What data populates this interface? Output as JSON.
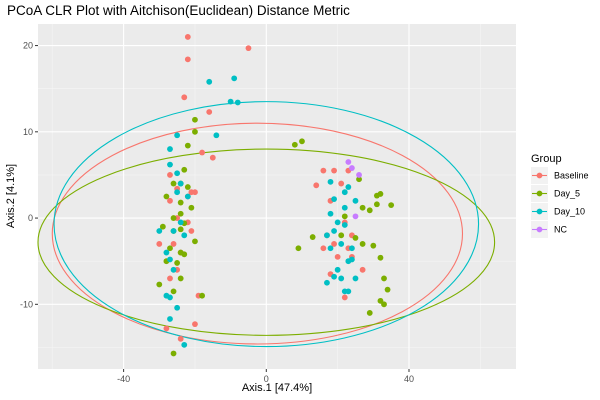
{
  "chart_data": {
    "type": "scatter",
    "title": "PCoA CLR Plot with Aitchison(Euclidean) Distance Metric",
    "xlabel": "Axis.1   [47.4%]",
    "ylabel": "Axis.2   [4.1%]",
    "xlim": [
      -64,
      70
    ],
    "ylim": [
      -17.5,
      22.5
    ],
    "xticks": [
      -40,
      0,
      40
    ],
    "xtick_labels": [
      "-40",
      "0",
      "40"
    ],
    "yticks": [
      -10,
      0,
      10,
      20
    ],
    "ytick_labels": [
      "-10",
      "0",
      "10",
      "20"
    ],
    "grid": true,
    "legend": {
      "title": "Group",
      "placement": "right"
    },
    "series": [
      {
        "name": "Baseline",
        "color": "#F8766D",
        "points": [
          [
            -22,
            21
          ],
          [
            -22,
            18.4
          ],
          [
            -5,
            19.7
          ],
          [
            -23,
            14
          ],
          [
            -16,
            12.3
          ],
          [
            -18,
            7.6
          ],
          [
            -15,
            7
          ],
          [
            -27,
            5
          ],
          [
            -25,
            3.4
          ],
          [
            -21,
            3
          ],
          [
            -27,
            2
          ],
          [
            -20,
            3
          ],
          [
            -22,
            2.5
          ],
          [
            -25,
            0
          ],
          [
            -21,
            -1.5
          ],
          [
            -26,
            -3
          ],
          [
            -30,
            -3
          ],
          [
            -24,
            -4
          ],
          [
            -25,
            -6
          ],
          [
            -27,
            -7
          ],
          [
            -19,
            -9
          ],
          [
            -20,
            -12.3
          ],
          [
            -28,
            -12.8
          ],
          [
            -24,
            -14
          ],
          [
            16,
            5.5
          ],
          [
            19,
            5.5
          ],
          [
            23,
            5.5
          ],
          [
            14,
            3.8
          ],
          [
            21,
            4
          ],
          [
            18,
            2
          ],
          [
            22,
            -0.5
          ],
          [
            24,
            -2
          ],
          [
            17,
            -2
          ],
          [
            19,
            -3
          ],
          [
            16,
            -3.5
          ],
          [
            23,
            -3.5
          ],
          [
            20,
            -4.5
          ],
          [
            24,
            -4.5
          ],
          [
            27,
            -6
          ],
          [
            18,
            -6.5
          ],
          [
            22,
            -9.2
          ],
          [
            -22,
            -0.5
          ]
        ]
      },
      {
        "name": "Day_5",
        "color": "#7CAE00",
        "points": [
          [
            -20,
            11.4
          ],
          [
            -20,
            10
          ],
          [
            -22,
            8.4
          ],
          [
            -23,
            5.6
          ],
          [
            -24,
            4
          ],
          [
            -26,
            4
          ],
          [
            -22,
            3.6
          ],
          [
            -28,
            2.5
          ],
          [
            -24,
            1.8
          ],
          [
            -21,
            1.2
          ],
          [
            -24,
            0.5
          ],
          [
            -26,
            0
          ],
          [
            -23,
            -0.6
          ],
          [
            -29,
            -1
          ],
          [
            -26,
            -1.5
          ],
          [
            -24,
            -1.3
          ],
          [
            -20,
            -2.7
          ],
          [
            -27,
            -3.5
          ],
          [
            -24,
            -4
          ],
          [
            -23,
            -4.2
          ],
          [
            -28,
            -5
          ],
          [
            -25,
            -5.2
          ],
          [
            -24,
            -7
          ],
          [
            -30,
            -7.7
          ],
          [
            -26,
            -8.5
          ],
          [
            -18,
            -9
          ],
          [
            -26,
            -15.7
          ],
          [
            8,
            8.5
          ],
          [
            10,
            8.9
          ],
          [
            26,
            4.5
          ],
          [
            32,
            2.8
          ],
          [
            31,
            2.6
          ],
          [
            27,
            1.2
          ],
          [
            29,
            0.9
          ],
          [
            31,
            1.6
          ],
          [
            35,
            1.5
          ],
          [
            22,
            0.2
          ],
          [
            21,
            -2
          ],
          [
            25,
            -2.3
          ],
          [
            27,
            -3
          ],
          [
            30,
            -3.2
          ],
          [
            32,
            -4.6
          ],
          [
            33,
            -7
          ],
          [
            34,
            -8.3
          ],
          [
            32,
            -9.6
          ],
          [
            29,
            -11
          ],
          [
            33,
            -10
          ],
          [
            9,
            -3.5
          ],
          [
            13,
            -2.2
          ]
        ]
      },
      {
        "name": "Day_10",
        "color": "#00BFC4",
        "points": [
          [
            -16,
            15.8
          ],
          [
            -9,
            16.2
          ],
          [
            -10,
            13.5
          ],
          [
            -8,
            13.4
          ],
          [
            -14,
            9.6
          ],
          [
            -25,
            9.6
          ],
          [
            -27,
            8
          ],
          [
            -27,
            6.2
          ],
          [
            -25,
            5.2
          ],
          [
            -24,
            4
          ],
          [
            -25,
            3
          ],
          [
            -22,
            2.5
          ],
          [
            -24,
            -0.5
          ],
          [
            -26,
            -1.5
          ],
          [
            -28,
            -4
          ],
          [
            -27,
            -4.8
          ],
          [
            -26,
            -6
          ],
          [
            -28,
            -9
          ],
          [
            -27,
            -9.2
          ],
          [
            -25,
            -10.4
          ],
          [
            -27,
            -11.7
          ],
          [
            -23,
            -14.7
          ],
          [
            -30,
            -1.5
          ],
          [
            -23,
            -2
          ],
          [
            18,
            4.2
          ],
          [
            23,
            3.6
          ],
          [
            22,
            3
          ],
          [
            19,
            2.2
          ],
          [
            25,
            2
          ],
          [
            22,
            1.2
          ],
          [
            18,
            0.5
          ],
          [
            20,
            -0.5
          ],
          [
            22,
            -0.8
          ],
          [
            19,
            -1.5
          ],
          [
            18,
            -3.5
          ],
          [
            21,
            -3
          ],
          [
            19,
            -6.8
          ],
          [
            21,
            -7
          ],
          [
            20,
            -6
          ],
          [
            24,
            -3.5
          ],
          [
            23,
            -5
          ],
          [
            24,
            -4.8
          ],
          [
            25,
            -7
          ],
          [
            17,
            -7.5
          ],
          [
            23,
            -8.5
          ],
          [
            22,
            -8.5
          ],
          [
            17,
            -2
          ]
        ]
      },
      {
        "name": "NC",
        "color": "#C77CFF",
        "points": [
          [
            23,
            6.5
          ],
          [
            24,
            5.8
          ],
          [
            26,
            5
          ],
          [
            25,
            0.2
          ]
        ]
      }
    ],
    "ellipses": [
      {
        "group": "Baseline",
        "center": [
          -2.5,
          -1.8
        ],
        "rx": 57.5,
        "ry": 12.8
      },
      {
        "group": "Day_5",
        "center": [
          0,
          -2.8
        ],
        "rx": 64,
        "ry": 10.8
      },
      {
        "group": "Day_10",
        "center": [
          0,
          -0.7
        ],
        "rx": 59.5,
        "ry": 14.2
      }
    ]
  }
}
